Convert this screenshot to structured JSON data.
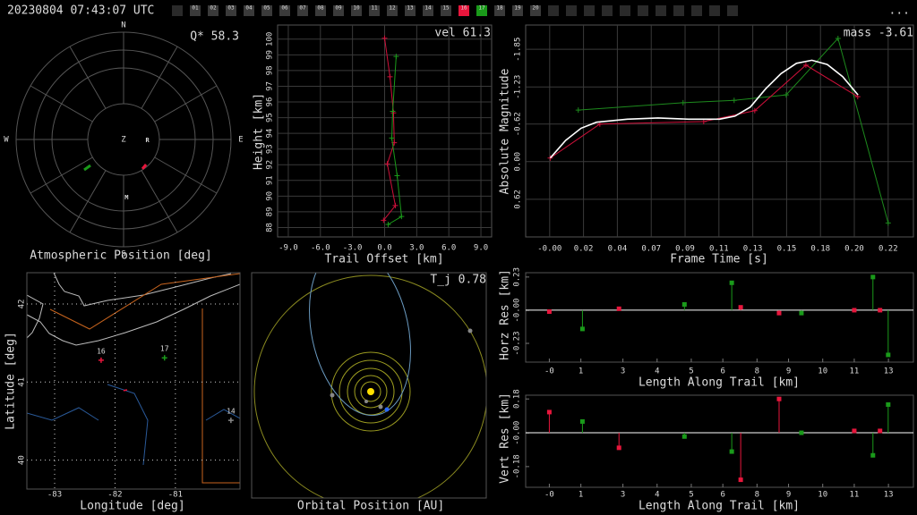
{
  "header": {
    "timestamp": "20230804 07:43:07 UTC",
    "menu": "...",
    "stations": [
      {
        "label": "01",
        "color": "#3a3a3a"
      },
      {
        "label": "02",
        "color": "#3a3a3a"
      },
      {
        "label": "03",
        "color": "#3a3a3a"
      },
      {
        "label": "04",
        "color": "#3a3a3a"
      },
      {
        "label": "05",
        "color": "#3a3a3a"
      },
      {
        "label": "06",
        "color": "#3a3a3a"
      },
      {
        "label": "07",
        "color": "#3a3a3a"
      },
      {
        "label": "08",
        "color": "#3a3a3a"
      },
      {
        "label": "09",
        "color": "#3a3a3a"
      },
      {
        "label": "10",
        "color": "#3a3a3a"
      },
      {
        "label": "11",
        "color": "#3a3a3a"
      },
      {
        "label": "12",
        "color": "#3a3a3a"
      },
      {
        "label": "13",
        "color": "#3a3a3a"
      },
      {
        "label": "14",
        "color": "#3a3a3a"
      },
      {
        "label": "15",
        "color": "#3a3a3a"
      },
      {
        "label": "16",
        "color": "#e8163c"
      },
      {
        "label": "17",
        "color": "#1a9a1a"
      },
      {
        "label": "18",
        "color": "#3a3a3a"
      },
      {
        "label": "19",
        "color": "#3a3a3a"
      },
      {
        "label": "20",
        "color": "#3a3a3a"
      }
    ]
  },
  "chart_data": [
    {
      "type": "polar",
      "xlabel": "Atmospheric Position [deg]",
      "annotation": "Q* 58.3",
      "compass": [
        "N",
        "E",
        "S",
        "W"
      ],
      "center_label": "Z",
      "rlim": [
        0,
        90
      ],
      "series": [
        {
          "color": "#e8163c",
          "x": [
            147.5,
            138.2
          ],
          "values": [
            29.3,
            28.2
          ]
        },
        {
          "color": "#1a9a1a",
          "x": [
            232.3,
            231.9
          ],
          "values": [
            41.7,
            35.3
          ]
        }
      ],
      "markers": {
        "labels": [
          "R",
          "M"
        ],
        "x": [
          92,
          177
        ],
        "values": [
          20,
          49
        ]
      }
    },
    {
      "type": "line",
      "xlabel": "Trail Offset [km]",
      "ylabel": "Height [km]",
      "annotation": "vel 61.3",
      "xlim": [
        -10,
        10
      ],
      "ylim": [
        87.4,
        100.9
      ],
      "xticks": [
        {
          "value": -9,
          "label": "-9.0"
        },
        {
          "value": -6,
          "label": "-6.0"
        },
        {
          "value": -3,
          "label": "-3.0"
        },
        {
          "value": 0,
          "label": "0.0"
        },
        {
          "value": 3,
          "label": "3.0"
        },
        {
          "value": 6,
          "label": "6.0"
        },
        {
          "value": 9,
          "label": "9.0"
        }
      ],
      "yticks": [
        88,
        89,
        90,
        91,
        92,
        93,
        94,
        95,
        96,
        97,
        98,
        99,
        100
      ],
      "grid": true,
      "grid_style": "solid",
      "series": [
        {
          "color": "#d0103a",
          "marker": "+",
          "x": [
            0.0,
            0.5,
            0.83,
            0.9,
            0.25,
            1.0,
            -0.1
          ],
          "values": [
            100.06,
            97.6,
            95.3,
            93.4,
            92.06,
            89.4,
            88.46
          ]
        },
        {
          "color": "#1a9a1a",
          "marker": "+",
          "x": [
            1.08,
            0.75,
            0.67,
            1.17,
            1.58,
            0.33
          ],
          "values": [
            98.9,
            95.4,
            93.7,
            91.3,
            88.7,
            88.2
          ]
        }
      ]
    },
    {
      "type": "line",
      "xlabel": "Frame Time [s]",
      "ylabel": "Absolute Magnitude",
      "annotation": "mass -3.61",
      "xlim": [
        -0.016,
        0.236
      ],
      "ylim": [
        1.24,
        -2.25
      ],
      "xticks": [
        {
          "value": -0.0004,
          "label": "-0.00"
        },
        {
          "value": 0.0216,
          "label": "0.02"
        },
        {
          "value": 0.0436,
          "label": "0.04"
        },
        {
          "value": 0.0656,
          "label": "0.07"
        },
        {
          "value": 0.0876,
          "label": "0.09"
        },
        {
          "value": 0.1096,
          "label": "0.11"
        },
        {
          "value": 0.1316,
          "label": "0.13"
        },
        {
          "value": 0.1536,
          "label": "0.15"
        },
        {
          "value": 0.1756,
          "label": "0.18"
        },
        {
          "value": 0.1976,
          "label": "0.20"
        },
        {
          "value": 0.2196,
          "label": "0.22"
        }
      ],
      "yticks": [
        -1.85,
        -1.23,
        -0.62,
        {
          "value": 0,
          "label": "0.00"
        },
        0.62
      ],
      "grid": true,
      "grid_style": "solid",
      "series": [
        {
          "color": "#1d8a1d",
          "marker": "+",
          "x": [
            0.0182,
            0.0863,
            0.1195,
            0.1533,
            0.187,
            0.2196
          ],
          "values": [
            -0.85,
            -0.97,
            -1.01,
            -1.1,
            -2.03,
            1.01
          ]
        },
        {
          "color": "#d0103a",
          "marker": "+",
          "x": [
            0.0,
            0.0322,
            0.0997,
            0.1329,
            0.1661,
            0.1998
          ],
          "values": [
            -0.06,
            -0.62,
            -0.66,
            -0.84,
            -1.59,
            -1.07
          ]
        },
        {
          "color": "#ffffff",
          "x": [
            0.0,
            0.01,
            0.02,
            0.03,
            0.05,
            0.07,
            0.09,
            0.11,
            0.12,
            0.13,
            0.14,
            0.15,
            0.16,
            0.17,
            0.18,
            0.19,
            0.2
          ],
          "values": [
            -0.06,
            -0.35,
            -0.55,
            -0.65,
            -0.7,
            -0.72,
            -0.7,
            -0.7,
            -0.75,
            -0.9,
            -1.2,
            -1.45,
            -1.62,
            -1.67,
            -1.6,
            -1.4,
            -1.1
          ]
        }
      ]
    },
    {
      "type": "map",
      "xlabel": "Longitude [deg]",
      "ylabel": "Latitude [deg]",
      "xlim": [
        -83.46,
        -79.93
      ],
      "ylim": [
        39.63,
        42.4
      ],
      "xticks": [
        -83,
        -82,
        -81
      ],
      "yticks": [
        42,
        41,
        40
      ],
      "grid": true,
      "grid_style": "dotted",
      "series": [
        {
          "color": "#e8163c",
          "x": [
            -81.86,
            -81.8
          ],
          "values": [
            40.89,
            40.9
          ]
        }
      ],
      "stations": {
        "labels": [
          "16",
          "17",
          "14"
        ],
        "colors": [
          "#e8163c",
          "#1a9a1a",
          "#888888"
        ],
        "x": [
          -82.23,
          -81.18,
          -80.08
        ],
        "values": [
          41.28,
          41.31,
          40.51
        ]
      }
    },
    {
      "type": "orbit",
      "xlabel": "Orbital Position [AU]",
      "annotation": "T_j 0.78"
    },
    {
      "type": "stem",
      "xlabel": "Length Along Trail [km]",
      "ylabel": "Horz Res [km]",
      "xlim": [
        -1.1,
        13.65
      ],
      "ylim": [
        -0.36,
        0.26
      ],
      "xticks": [
        {
          "value": -0.2,
          "label": "-0"
        },
        1,
        {
          "value": 2.6,
          "label": "3"
        },
        {
          "value": 3.9,
          "label": "4"
        },
        {
          "value": 5.2,
          "label": "5"
        },
        {
          "value": 6.4,
          "label": "6"
        },
        {
          "value": 7.7,
          "label": "8"
        },
        {
          "value": 8.9,
          "label": "9"
        },
        {
          "value": 10.2,
          "label": "10"
        },
        {
          "value": 11.4,
          "label": "11"
        },
        {
          "value": 12.7,
          "label": "13"
        }
      ],
      "yticks": [
        0.23,
        {
          "value": -0.001,
          "label": "-0.00"
        },
        -0.23
      ],
      "grid": false,
      "series": [
        {
          "color": "#e8163c",
          "x": [
            -0.2,
            2.45,
            7.08,
            8.54,
            11.4,
            12.38
          ],
          "values": [
            -0.01,
            0.01,
            0.02,
            -0.02,
            0.0,
            0.0
          ]
        },
        {
          "color": "#1a9a1a",
          "x": [
            1.06,
            4.94,
            6.74,
            9.39,
            12.11,
            12.69
          ],
          "values": [
            -0.13,
            0.04,
            0.19,
            -0.02,
            0.23,
            -0.31
          ]
        }
      ]
    },
    {
      "type": "stem",
      "xlabel": "Length Along Trail [km]",
      "ylabel": "Vert Res [km]",
      "xlim": [
        -1.1,
        13.65
      ],
      "ylim": [
        -0.29,
        0.2
      ],
      "xticks": [
        {
          "value": -0.2,
          "label": "-0"
        },
        1,
        {
          "value": 2.6,
          "label": "3"
        },
        {
          "value": 3.9,
          "label": "4"
        },
        {
          "value": 5.2,
          "label": "5"
        },
        {
          "value": 6.4,
          "label": "6"
        },
        {
          "value": 7.7,
          "label": "8"
        },
        {
          "value": 8.9,
          "label": "9"
        },
        {
          "value": 10.2,
          "label": "10"
        },
        {
          "value": 11.4,
          "label": "11"
        },
        {
          "value": 12.7,
          "label": "13"
        }
      ],
      "yticks": [
        0.18,
        {
          "value": -0.001,
          "label": "-0.00"
        },
        -0.18
      ],
      "grid": false,
      "series": [
        {
          "color": "#e8163c",
          "x": [
            -0.2,
            2.45,
            7.08,
            8.54,
            11.4,
            12.38
          ],
          "values": [
            0.11,
            -0.08,
            -0.25,
            0.18,
            0.01,
            0.01
          ]
        },
        {
          "color": "#1a9a1a",
          "x": [
            1.06,
            4.94,
            6.74,
            9.39,
            12.11,
            12.69
          ],
          "values": [
            0.06,
            -0.02,
            -0.1,
            0.0,
            -0.12,
            0.15
          ]
        }
      ]
    }
  ]
}
